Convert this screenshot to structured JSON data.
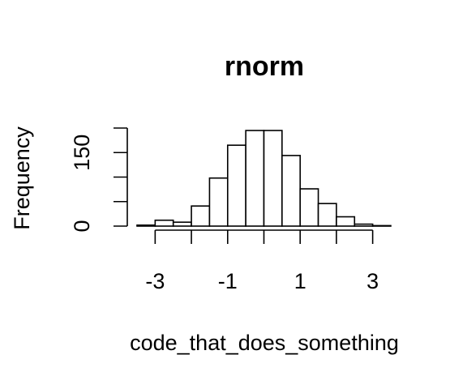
{
  "chart_data": {
    "type": "bar",
    "title": "rnorm",
    "xlabel": "code_that_does_something",
    "ylabel": "Frequency",
    "bin_edges": [
      -3.5,
      -3.0,
      -2.5,
      -2.0,
      -1.5,
      -1.0,
      -0.5,
      0.0,
      0.5,
      1.0,
      1.5,
      2.0,
      2.5,
      3.0,
      3.5
    ],
    "values": [
      2,
      12,
      8,
      41,
      98,
      165,
      195,
      195,
      144,
      76,
      46,
      19,
      4,
      1
    ],
    "xlim": [
      -3.5,
      3.5
    ],
    "ylim": [
      0,
      200
    ],
    "x_ticks": [
      -3,
      -2,
      -1,
      0,
      1,
      2,
      3
    ],
    "x_tick_labels": [
      "-3",
      "",
      "-1",
      "",
      "1",
      "",
      "3"
    ],
    "y_ticks": [
      0,
      50,
      100,
      150,
      200
    ],
    "y_tick_labels": [
      "0",
      "",
      "",
      "150",
      ""
    ],
    "grid": false
  }
}
